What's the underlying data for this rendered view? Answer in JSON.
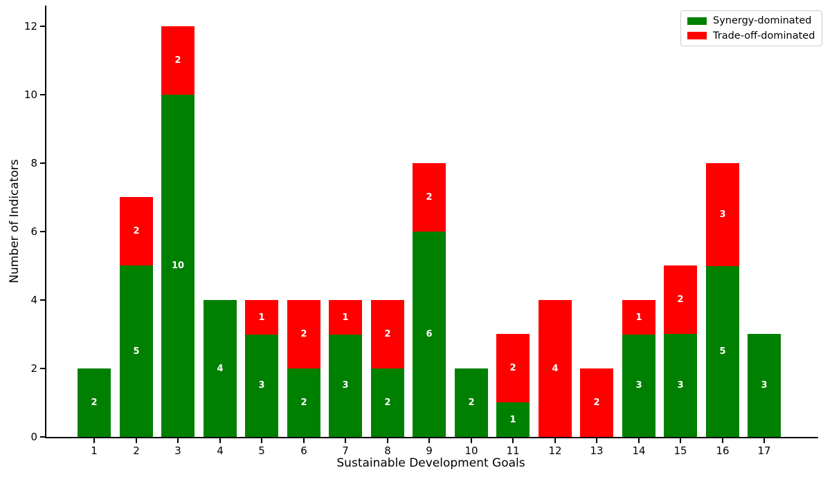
{
  "chart_data": {
    "type": "bar",
    "stacked": true,
    "title": "",
    "xlabel": "Sustainable Development Goals",
    "ylabel": "Number of Indicators",
    "categories": [
      "1",
      "2",
      "3",
      "4",
      "5",
      "6",
      "7",
      "8",
      "9",
      "10",
      "11",
      "12",
      "13",
      "14",
      "15",
      "16",
      "17"
    ],
    "series": [
      {
        "name": "Synergy-dominated",
        "color": "#008000",
        "values": [
          2,
          5,
          10,
          4,
          3,
          2,
          3,
          2,
          6,
          2,
          1,
          0,
          0,
          3,
          3,
          5,
          3
        ]
      },
      {
        "name": "Trade-off-dominated",
        "color": "#ff0000",
        "values": [
          0,
          2,
          2,
          0,
          1,
          2,
          1,
          2,
          2,
          0,
          2,
          4,
          2,
          1,
          2,
          3,
          0
        ]
      }
    ],
    "yticks": [
      0,
      2,
      4,
      6,
      8,
      10,
      12
    ],
    "ylim": [
      0,
      12.6
    ],
    "grid": false,
    "legend_position": "upper right",
    "bar_labels": "white bold values centered in each segment, hidden when 0"
  }
}
